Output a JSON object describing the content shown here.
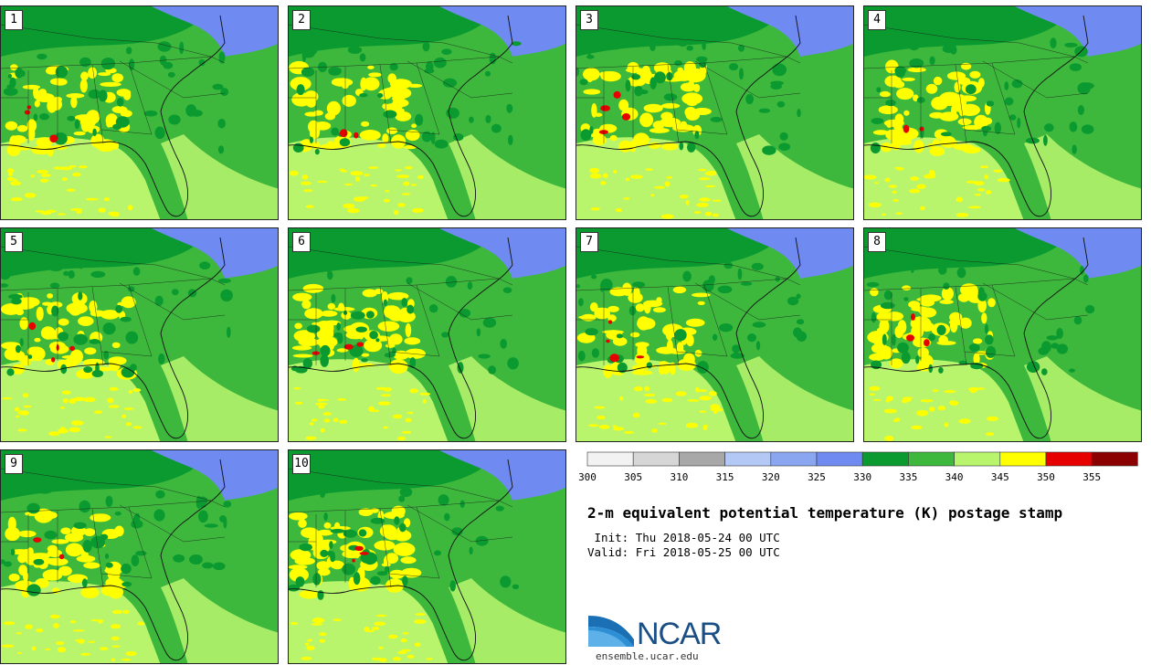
{
  "title": "2-m equivalent potential temperature (K) postage stamp",
  "init_label": " Init: ",
  "init_value": "Thu 2018-05-24 00 UTC",
  "valid_label": "Valid: ",
  "valid_value": "Fri 2018-05-25 00 UTC",
  "stamps": [
    "1",
    "2",
    "3",
    "4",
    "5",
    "6",
    "7",
    "8",
    "9",
    "10"
  ],
  "colorbar": {
    "ticks": [
      "300",
      "305",
      "310",
      "315",
      "320",
      "325",
      "330",
      "335",
      "340",
      "345",
      "350",
      "355"
    ],
    "colors": [
      "#f2f2f2",
      "#d6d6d6",
      "#a8a8a8",
      "#b3c8f5",
      "#8aa6f0",
      "#6f8af0",
      "#0b9a30",
      "#3db83d",
      "#b8f56d",
      "#ffff00",
      "#e60000",
      "#8b0000"
    ]
  },
  "map_colors": {
    "water_gulf": "#b8f56d",
    "ocean_atlantic": "#3db83d",
    "land_base": "#3db83d",
    "north_dark": "#0b9a30",
    "cool_northeast": "#6f8af0",
    "warm": "#ffff00",
    "hot": "#e60000"
  },
  "logo": {
    "text": "NCAR",
    "url": "ensemble.ucar.edu"
  }
}
